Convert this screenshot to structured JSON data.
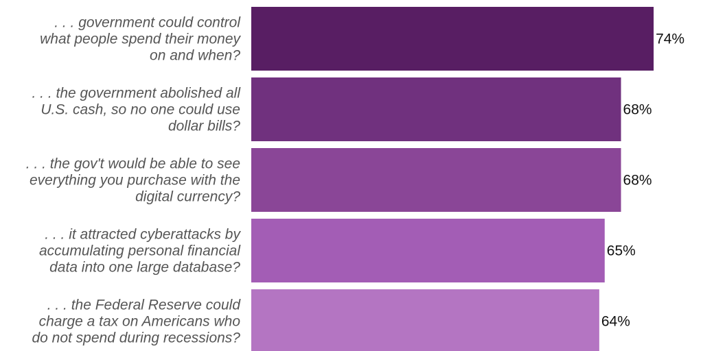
{
  "chart_data": {
    "type": "bar",
    "orientation": "horizontal",
    "categories": [
      [
        "...",
        "government could control",
        "what people spend their money",
        "on and when?"
      ],
      [
        "...",
        "the government abolished all",
        "U.S. cash, so no one could use",
        "dollar bills?"
      ],
      [
        "...",
        "the gov't would be able to see",
        "everything you purchase with the",
        "digital currency?"
      ],
      [
        "...",
        "it attracted cyberattacks by",
        "accumulating personal financial",
        "data into one large database?"
      ],
      [
        "...",
        "the Federal Reserve could",
        "charge a tax on Americans who",
        "do not spend during recessions?"
      ]
    ],
    "values": [
      74,
      68,
      68,
      65,
      64
    ],
    "value_labels": [
      "74%",
      "68%",
      "68%",
      "65%",
      "64%"
    ],
    "colors": [
      "#581e63",
      "#70317e",
      "#8a4697",
      "#a35db5",
      "#b475c2"
    ],
    "xlim": [
      0,
      100
    ],
    "grid": false
  }
}
